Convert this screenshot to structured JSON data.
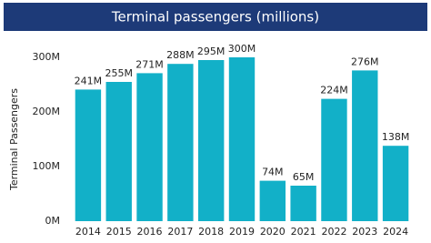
{
  "chart_data": {
    "type": "bar",
    "title": "Terminal passengers (millions)",
    "y_label": "Terminal Passengers",
    "categories": [
      "2014",
      "2015",
      "2016",
      "2017",
      "2018",
      "2019",
      "2020",
      "2021",
      "2022",
      "2023",
      "2024"
    ],
    "values": [
      241,
      255,
      271,
      288,
      295,
      300,
      74,
      65,
      224,
      276,
      138
    ],
    "value_labels": [
      "241M",
      "255M",
      "271M",
      "288M",
      "295M",
      "300M",
      "74M",
      "65M",
      "224M",
      "276M",
      "138M"
    ],
    "color": "#12b0c8",
    "ylim": [
      0,
      300
    ],
    "yticks": [
      {
        "value": 0,
        "label": "0M"
      },
      {
        "value": 100,
        "label": "100M"
      },
      {
        "value": 200,
        "label": "200M"
      },
      {
        "value": 300,
        "label": "300M"
      }
    ],
    "grid": false
  }
}
